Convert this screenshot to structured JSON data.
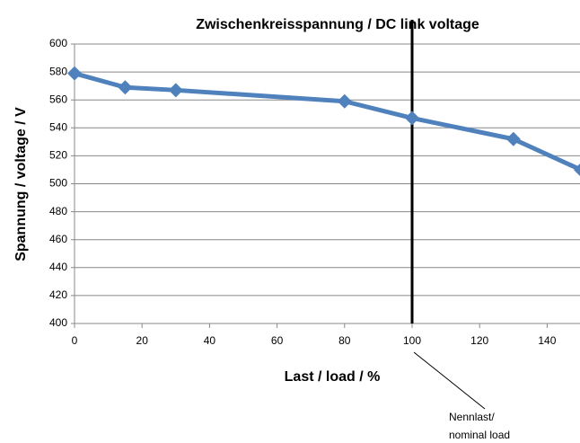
{
  "chart_data": {
    "type": "line",
    "title": "Zwischenkreisspannung / DC link voltage",
    "x_label": "Last / load / %",
    "y_label": "Spannung / voltage / V",
    "x": [
      0,
      15,
      30,
      80,
      100,
      130,
      150
    ],
    "series": [
      {
        "name": "DC link voltage",
        "color": "#4f81bd",
        "values": [
          579,
          569,
          567,
          559,
          547,
          532,
          510
        ]
      }
    ],
    "xlim": [
      0,
      150
    ],
    "xticks": [
      0,
      20,
      40,
      60,
      80,
      100,
      120,
      140
    ],
    "ylim": [
      400,
      600
    ],
    "yticks": [
      400,
      420,
      440,
      460,
      480,
      500,
      520,
      540,
      560,
      580,
      600
    ],
    "grid": true,
    "annotation": {
      "x": 100,
      "lines": [
        "Nennlast/",
        "nominal load"
      ]
    }
  }
}
